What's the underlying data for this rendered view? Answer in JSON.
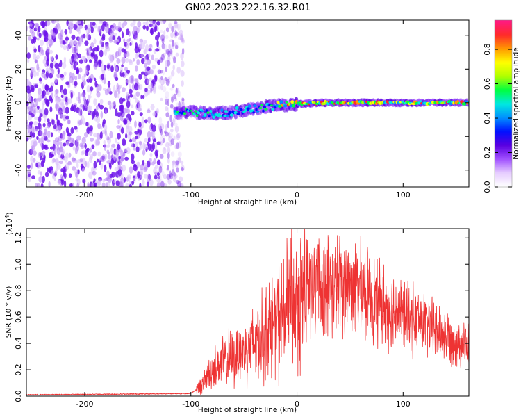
{
  "title": "GN02.2023.222.16.32.R01",
  "colors": {
    "spectrogram_noise": "#7a1cf0",
    "snr_line": "#ee3333",
    "colormap": [
      "#ffffff",
      "#e6ccff",
      "#a050ff",
      "#5a00e0",
      "#0010ff",
      "#0090ff",
      "#00e8e0",
      "#00ff40",
      "#b0ff00",
      "#ffff00",
      "#ff9900",
      "#ff2a2a",
      "#ff1a80"
    ]
  },
  "chart_data": [
    {
      "type": "heatmap",
      "name": "spectrogram",
      "xlabel": "Height of straight line (km)",
      "ylabel": "Frequency (Hz)",
      "xlim": [
        -255,
        162
      ],
      "ylim": [
        -50,
        49
      ],
      "x_ticks": [
        "-200",
        "-100",
        "0",
        "100"
      ],
      "y_ticks": [
        "-40",
        "-20",
        "0",
        "20",
        "40"
      ],
      "noise_region_x": [
        -255,
        -115
      ],
      "signal_ridge": [
        {
          "x": -115,
          "y": -6.5
        },
        {
          "x": -100,
          "y": -5.5
        },
        {
          "x": -80,
          "y": -6.5
        },
        {
          "x": -60,
          "y": -5.5
        },
        {
          "x": -40,
          "y": -3.5
        },
        {
          "x": -20,
          "y": -1.5
        },
        {
          "x": 0,
          "y": -1.0
        },
        {
          "x": 20,
          "y": 0
        },
        {
          "x": 162,
          "y": 0
        }
      ],
      "colorbar": {
        "label": "Normalized spectral amplitude",
        "range": [
          0.0,
          0.97
        ],
        "ticks": [
          "0.0",
          "0.2",
          "0.4",
          "0.6",
          "0.8"
        ]
      }
    },
    {
      "type": "line",
      "name": "snr",
      "xlabel": "Height of straight line (km)",
      "ylabel": "SNR (10 * v/v)",
      "y_scale_label": "(x10",
      "y_scale_exp": "4",
      "xlim": [
        -255,
        162
      ],
      "ylim": [
        0.0,
        1.27
      ],
      "x_ticks": [
        "-200",
        "-100",
        "0",
        "100"
      ],
      "y_ticks": [
        "0.0",
        "0.2",
        "0.4",
        "0.6",
        "0.8",
        "1.0",
        "1.2"
      ],
      "envelope": [
        {
          "x": -255,
          "y": 0.01
        },
        {
          "x": -100,
          "y": 0.02
        },
        {
          "x": -90,
          "y": 0.08
        },
        {
          "x": -80,
          "y": 0.2
        },
        {
          "x": -60,
          "y": 0.3
        },
        {
          "x": -40,
          "y": 0.4
        },
        {
          "x": -20,
          "y": 0.55
        },
        {
          "x": 0,
          "y": 0.72
        },
        {
          "x": 20,
          "y": 0.84
        },
        {
          "x": 40,
          "y": 0.85
        },
        {
          "x": 60,
          "y": 0.8
        },
        {
          "x": 80,
          "y": 0.7
        },
        {
          "x": 100,
          "y": 0.62
        },
        {
          "x": 120,
          "y": 0.55
        },
        {
          "x": 140,
          "y": 0.46
        },
        {
          "x": 162,
          "y": 0.38
        }
      ],
      "peaks": [
        {
          "x": -5,
          "y": 1.27
        },
        {
          "x": 10,
          "y": 1.18
        },
        {
          "x": 20,
          "y": 1.15
        }
      ]
    }
  ]
}
